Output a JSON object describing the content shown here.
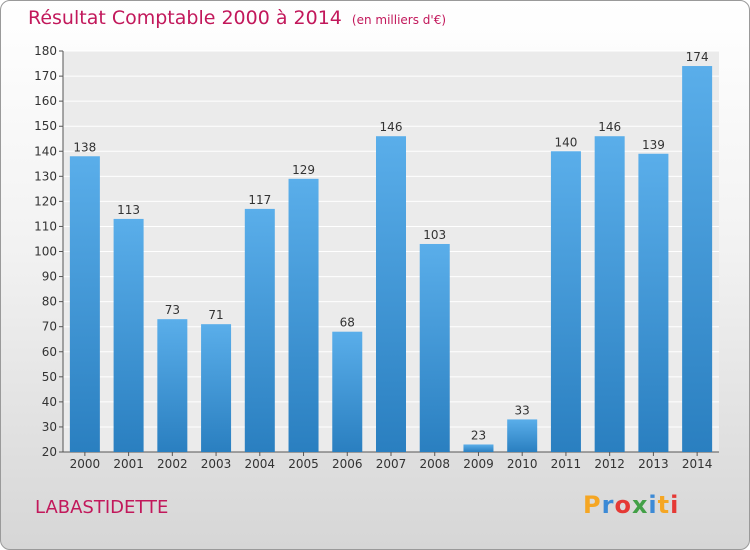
{
  "title": "Résultat Comptable 2000 à 2014",
  "unit": "(en milliers d'€)",
  "commune": "LABASTIDETTE",
  "logo": {
    "letters": [
      "P",
      "r",
      "o",
      "x",
      "i",
      "t",
      "i"
    ],
    "colors": [
      "#f5a623",
      "#3c8ad6",
      "#e53935",
      "#43a047",
      "#3c8ad6",
      "#f5a623",
      "#e53935"
    ]
  },
  "colors": {
    "bar_light": "#5aaeea",
    "bar_dark": "#2a7fc0",
    "title": "#c2185b"
  },
  "chart_data": {
    "type": "bar",
    "categories": [
      "2000",
      "2001",
      "2002",
      "2003",
      "2004",
      "2005",
      "2006",
      "2007",
      "2008",
      "2009",
      "2010",
      "2011",
      "2012",
      "2013",
      "2014"
    ],
    "values": [
      138,
      113,
      73,
      71,
      117,
      129,
      68,
      146,
      103,
      23,
      33,
      140,
      146,
      139,
      174
    ],
    "title": "Résultat Comptable 2000 à 2014",
    "xlabel": "",
    "ylabel": "",
    "ylim": [
      20,
      180
    ],
    "yticks": [
      20,
      30,
      40,
      50,
      60,
      70,
      80,
      90,
      100,
      110,
      120,
      130,
      140,
      150,
      160,
      170,
      180
    ],
    "grid": true
  }
}
